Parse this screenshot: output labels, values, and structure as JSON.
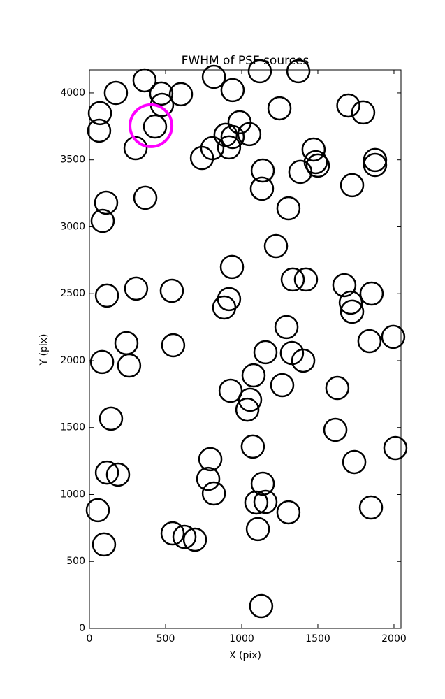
{
  "chart_data": {
    "type": "scatter",
    "title": "FWHM of PSF sources",
    "x_label": "X (pix)",
    "y_label": "Y (pix)",
    "xlim": [
      0,
      2046
    ],
    "ylim": [
      0,
      4172
    ],
    "xticks": [
      0,
      500,
      1000,
      1500,
      2000
    ],
    "yticks": [
      0,
      500,
      1000,
      1500,
      2000,
      2500,
      3000,
      3500,
      4000
    ],
    "series": [
      {
        "color": "#000000",
        "x": [
          362,
          174,
          69,
          64,
          472,
          477,
          601,
          431,
          303,
          817,
          940,
          1119,
          1372,
          1248,
          1700,
          1798,
          986,
          894,
          940,
          807,
          739,
          917,
          1050,
          1472,
          1500,
          1486,
          1385,
          1138,
          1133,
          1307,
          1725,
          1876,
          1876,
          110,
          87,
          367,
          1225,
          936,
          307,
          541,
          115,
          917,
          885,
          1335,
          1422,
          1674,
          1716,
          1725,
          1853,
          1294,
          243,
          261,
          83,
          550,
          1156,
          1330,
          1404,
          1839,
          1995,
          1078,
          927,
          1055,
          1037,
          1266,
          1628,
          142,
          1615,
          1073,
          2009,
          794,
          1739,
          115,
          188,
          780,
          817,
          1138,
          1096,
          1156,
          1849,
          55,
          1307,
          1106,
          546,
          624,
          693,
          96,
          1128
        ],
        "y": [
          4094,
          4000,
          3849,
          3718,
          3995,
          3911,
          3990,
          3749,
          3587,
          4120,
          4021,
          4162,
          4162,
          3885,
          3906,
          3854,
          3781,
          3687,
          3671,
          3587,
          3514,
          3593,
          3692,
          3577,
          3457,
          3483,
          3410,
          3420,
          3285,
          3138,
          3311,
          3499,
          3462,
          3180,
          3044,
          3217,
          2856,
          2700,
          2538,
          2522,
          2486,
          2460,
          2397,
          2606,
          2606,
          2564,
          2433,
          2366,
          2501,
          2251,
          2131,
          1963,
          1990,
          2115,
          2063,
          2057,
          2000,
          2146,
          2178,
          1890,
          1775,
          1708,
          1634,
          1817,
          1796,
          1567,
          1483,
          1358,
          1347,
          1264,
          1243,
          1164,
          1149,
          1117,
          1008,
          1081,
          940,
          945,
          903,
          883,
          867,
          742,
          710,
          684,
          663,
          627,
          167
        ]
      },
      {
        "color": "#ff00ff",
        "x": [
          404
        ],
        "y": [
          3755
        ]
      }
    ]
  }
}
